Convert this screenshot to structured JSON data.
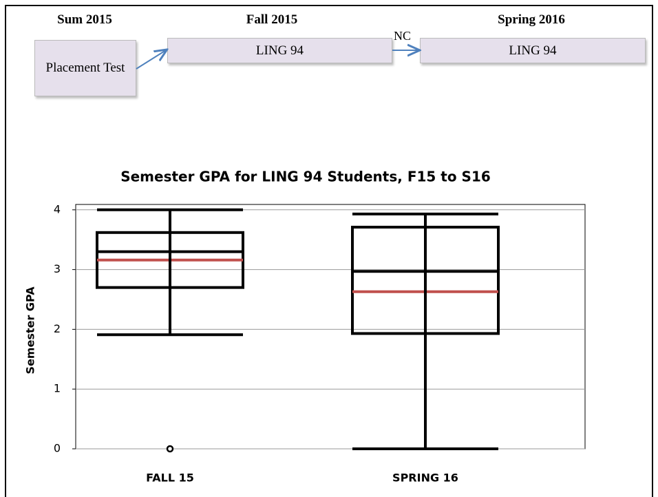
{
  "diagram": {
    "headers": [
      "Sum 2015",
      "Fall 2015",
      "Spring 2016"
    ],
    "nodes": [
      {
        "label": "Placement Test"
      },
      {
        "label": "LING 94"
      },
      {
        "label": "LING 94"
      }
    ],
    "edge_label": "NC"
  },
  "chart_data": {
    "type": "box",
    "title": "Semester GPA for LING 94 Students, F15 to S16",
    "ylabel": "Semester GPA",
    "categories": [
      "FALL 15",
      "SPRING 16"
    ],
    "boxes": [
      {
        "min": 1.91,
        "q1": 2.7,
        "median": 3.3,
        "q3": 3.62,
        "max": 4.0,
        "mean": 3.16,
        "outliers": [
          0
        ]
      },
      {
        "min": 0,
        "q1": 1.93,
        "median": 2.97,
        "q3": 3.71,
        "max": 3.93,
        "mean": 2.63,
        "outliers": []
      }
    ],
    "color": "#000000",
    "mean_color": "#c0504d",
    "ylim": [
      0,
      4.09
    ],
    "yticks": [
      0,
      1,
      2,
      3,
      4
    ],
    "grid": true
  }
}
